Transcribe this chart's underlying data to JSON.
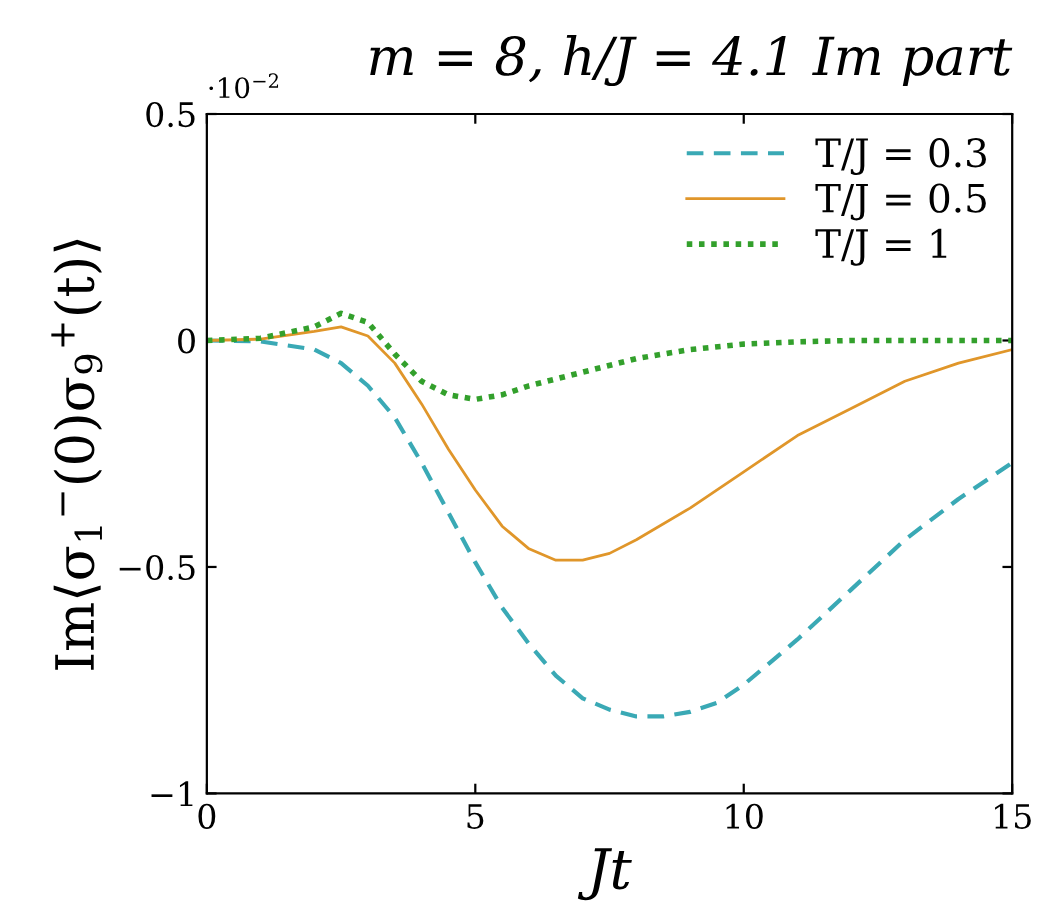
{
  "chart_data": {
    "type": "line",
    "title": "m = 8, h/J = 4.1 Im part",
    "xlabel": "Jt",
    "ylabel": "Im⟨σ$_{1}$$^{−}$(0)σ$_{9}$$^{+}$(t)⟩",
    "annotations": [
      "·10$^{−2}$"
    ],
    "xlim": [
      0,
      15
    ],
    "xticks": [
      0,
      5,
      10,
      15
    ],
    "ylim": [
      -1,
      0.5
    ],
    "yticks": [
      -1,
      -0.5,
      0,
      0.5
    ],
    "legend": "top right",
    "grid": false,
    "marker": "none",
    "series": [
      {
        "name": "T/J = 0.3",
        "color": "#3aa9b5",
        "line_style": "dashed",
        "x": [
          0,
          1,
          2,
          2.5,
          3,
          3.5,
          4,
          4.5,
          5,
          5.5,
          6,
          6.5,
          7,
          7.5,
          8,
          8.5,
          9,
          9.5,
          10,
          11,
          12,
          13,
          14,
          15
        ],
        "values": [
          0,
          -0.002,
          -0.02,
          -0.05,
          -0.1,
          -0.17,
          -0.27,
          -0.38,
          -0.49,
          -0.59,
          -0.67,
          -0.74,
          -0.79,
          -0.815,
          -0.83,
          -0.83,
          -0.82,
          -0.8,
          -0.76,
          -0.66,
          -0.55,
          -0.44,
          -0.35,
          -0.27
        ]
      },
      {
        "name": "T/J = 0.5",
        "color": "#e0962a",
        "line_style": "solid",
        "x": [
          0,
          1,
          2,
          2.5,
          3,
          3.5,
          4,
          4.5,
          5,
          5.5,
          6,
          6.5,
          7,
          7.5,
          8,
          9,
          10,
          11,
          12,
          13,
          14,
          15
        ],
        "values": [
          0,
          0.003,
          0.02,
          0.03,
          0.01,
          -0.05,
          -0.14,
          -0.24,
          -0.33,
          -0.41,
          -0.46,
          -0.485,
          -0.485,
          -0.47,
          -0.44,
          -0.37,
          -0.29,
          -0.21,
          -0.15,
          -0.09,
          -0.05,
          -0.02
        ]
      },
      {
        "name": "T/J = 1",
        "color": "#33a02c",
        "line_style": "dotted",
        "x": [
          0,
          1,
          2,
          2.5,
          3,
          3.5,
          4,
          4.5,
          5,
          5.5,
          6,
          7,
          8,
          9,
          10,
          11,
          12,
          13,
          14,
          15
        ],
        "values": [
          0,
          0.005,
          0.03,
          0.06,
          0.04,
          -0.03,
          -0.09,
          -0.12,
          -0.13,
          -0.12,
          -0.1,
          -0.07,
          -0.04,
          -0.02,
          -0.008,
          -0.003,
          0,
          0,
          0,
          0
        ]
      }
    ]
  }
}
